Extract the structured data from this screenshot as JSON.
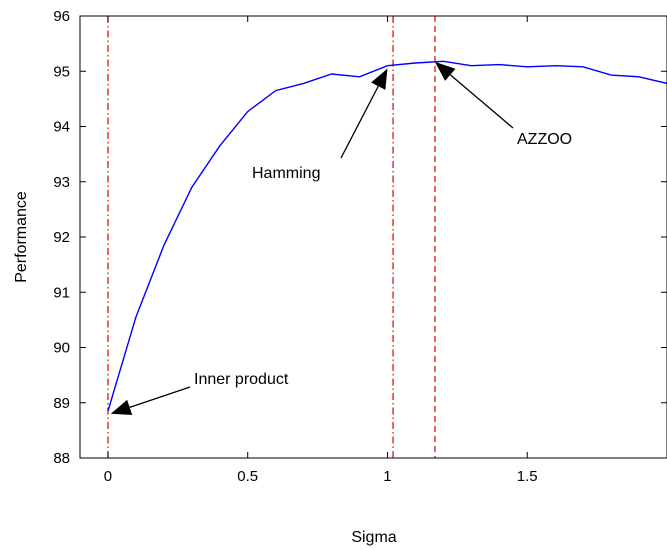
{
  "chart_data": {
    "type": "line",
    "xlabel": "Sigma",
    "ylabel": "Performance",
    "xlim": [
      -0.1,
      2.0
    ],
    "ylim": [
      88,
      96
    ],
    "xticks": [
      0,
      0.5,
      1,
      1.5
    ],
    "xtick_labels": [
      "0",
      "0.5",
      "1",
      "1.5"
    ],
    "yticks": [
      88,
      89,
      90,
      91,
      92,
      93,
      94,
      95,
      96
    ],
    "ytick_labels": [
      "88",
      "89",
      "90",
      "91",
      "92",
      "93",
      "94",
      "95",
      "96"
    ],
    "grid": false,
    "legend": null,
    "series": [
      {
        "color": "#0000ff",
        "x": [
          0,
          0.1,
          0.2,
          0.3,
          0.4,
          0.5,
          0.6,
          0.7,
          0.8,
          0.9,
          1.0,
          1.1,
          1.2,
          1.3,
          1.4,
          1.5,
          1.6,
          1.7,
          1.8,
          1.9,
          2.0
        ],
        "values": [
          88.85,
          90.55,
          91.85,
          92.9,
          93.65,
          94.27,
          94.65,
          94.78,
          94.95,
          94.9,
          95.1,
          95.15,
          95.18,
          95.1,
          95.12,
          95.08,
          95.1,
          95.08,
          94.93,
          94.9,
          94.78
        ]
      }
    ],
    "reference_lines": [
      {
        "x": 0,
        "color": "#dd0000",
        "style": "dashdot"
      },
      {
        "x": 1.02,
        "color": "#dd0000",
        "style": "dashdot"
      },
      {
        "x": 1.17,
        "color": "#dd0000",
        "style": "dashed"
      }
    ],
    "annotations": [
      {
        "text": "Inner product",
        "point": [
          0.01,
          88.8
        ]
      },
      {
        "text": "Hamming",
        "point": [
          1.0,
          95.05
        ]
      },
      {
        "text": "AZZOO",
        "point": [
          1.17,
          95.17
        ]
      }
    ]
  }
}
